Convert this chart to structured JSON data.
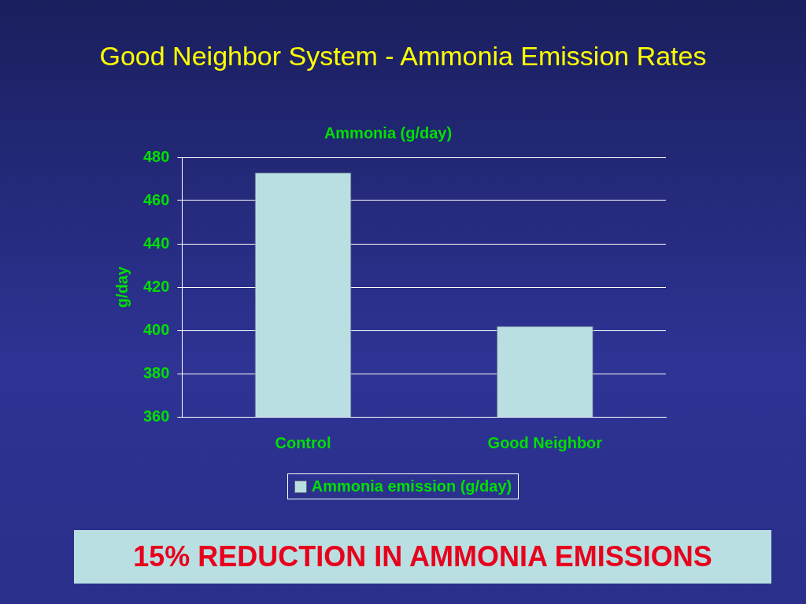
{
  "chart_data": {
    "type": "bar",
    "title": "Good Neighbor System - Ammonia Emission Rates",
    "subtitle": "Ammonia (g/day)",
    "ylabel": "g/day",
    "categories": [
      "Control",
      "Good Neighbor"
    ],
    "series": [
      {
        "name": "Ammonia emission (g/day)",
        "color": "#b9dfe2",
        "values": [
          473,
          402
        ]
      }
    ],
    "ylim": [
      360,
      480
    ],
    "yticks": [
      360,
      380,
      400,
      420,
      440,
      460,
      480
    ],
    "grid": "y",
    "legend": "bottom",
    "annotations": [
      "15% REDUCTION IN AMMONIA EMISSIONS"
    ]
  }
}
